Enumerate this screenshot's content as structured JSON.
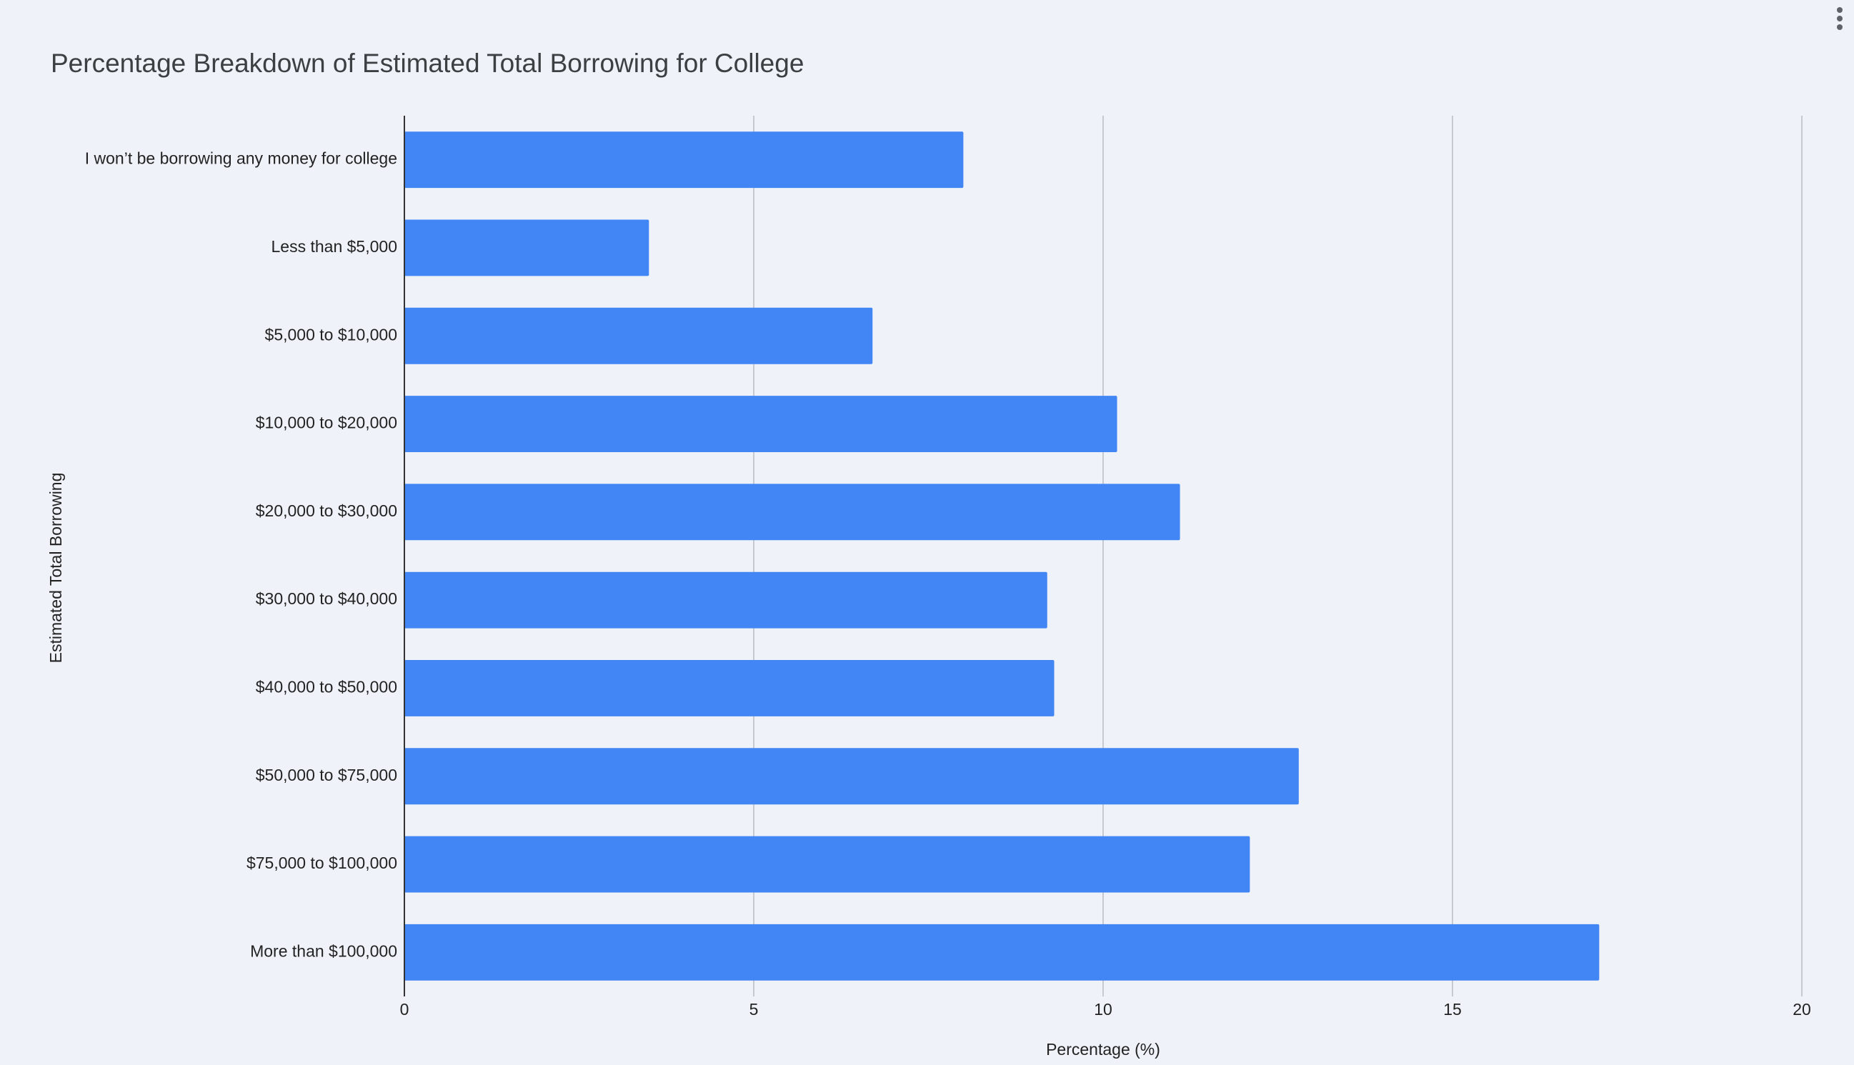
{
  "chart_data": {
    "type": "bar",
    "orientation": "horizontal",
    "title": "Percentage Breakdown of Estimated Total Borrowing for College",
    "x_label": "Percentage (%)",
    "y_label": "Estimated Total Borrowing",
    "categories": [
      "I won’t be borrowing any money for college",
      "Less than $5,000",
      "$5,000 to $10,000",
      "$10,000 to $20,000",
      "$20,000 to $30,000",
      "$30,000 to $40,000",
      "$40,000 to $50,000",
      "$50,000 to $75,000",
      "$75,000 to $100,000",
      "More than $100,000"
    ],
    "values": [
      8.0,
      3.5,
      6.7,
      10.2,
      11.1,
      9.2,
      9.3,
      12.8,
      12.1,
      17.1
    ],
    "color": "#4285f4",
    "xlim": [
      0,
      20
    ],
    "xticks": [
      0,
      5,
      10,
      15,
      20
    ],
    "grid": true
  }
}
